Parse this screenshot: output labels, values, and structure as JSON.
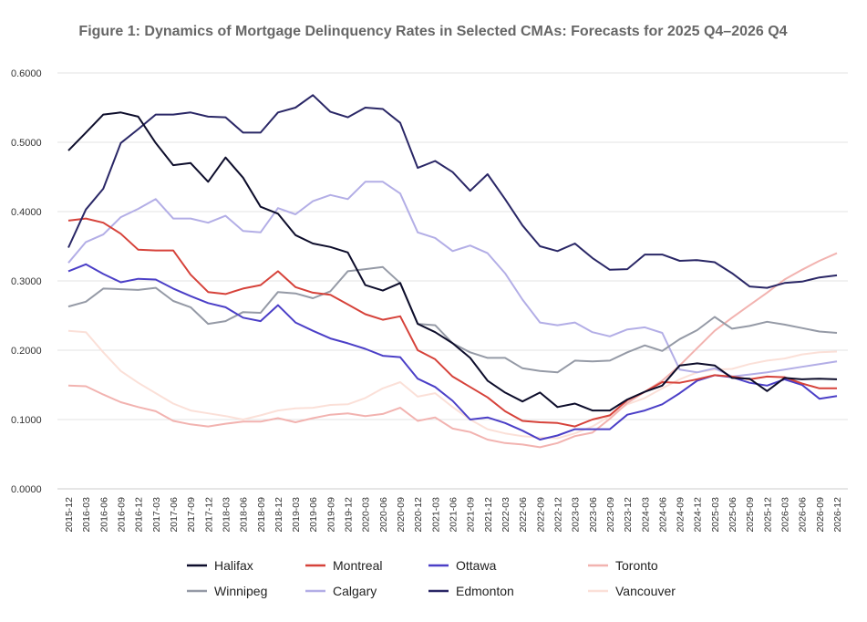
{
  "chart_data": {
    "type": "line",
    "title": "Figure 1: Dynamics of Mortgage Delinquency Rates in Selected CMAs: Forecasts for 2025 Q4–2026 Q4",
    "xlabel": "",
    "ylabel": "",
    "ylim": [
      0,
      0.6
    ],
    "yticks": [
      "0.0000",
      "0.1000",
      "0.2000",
      "0.3000",
      "0.4000",
      "0.5000",
      "0.6000"
    ],
    "grid": true,
    "legend_position": "bottom",
    "x": [
      "2015-12",
      "2016-03",
      "2016-06",
      "2016-09",
      "2016-12",
      "2017-03",
      "2017-06",
      "2017-09",
      "2017-12",
      "2018-03",
      "2018-06",
      "2018-09",
      "2018-12",
      "2019-03",
      "2019-06",
      "2019-09",
      "2019-12",
      "2020-03",
      "2020-06",
      "2020-09",
      "2020-12",
      "2021-03",
      "2021-06",
      "2021-09",
      "2021-12",
      "2022-03",
      "2022-06",
      "2022-09",
      "2022-12",
      "2023-03",
      "2023-06",
      "2023-09",
      "2023-12",
      "2024-03",
      "2024-06",
      "2024-09",
      "2024-12",
      "2025-03",
      "2025-06",
      "2025-09",
      "2025-12",
      "2026-03",
      "2026-06",
      "2026-09",
      "2026-12"
    ],
    "series": [
      {
        "name": "Halifax",
        "color": "#0d0d2b",
        "values": [
          0.488,
          0.514,
          0.54,
          0.543,
          0.537,
          0.499,
          0.467,
          0.47,
          0.443,
          0.478,
          0.449,
          0.407,
          0.397,
          0.366,
          0.354,
          0.349,
          0.341,
          0.294,
          0.286,
          0.297,
          0.238,
          0.226,
          0.21,
          0.189,
          0.156,
          0.139,
          0.126,
          0.139,
          0.118,
          0.123,
          0.113,
          0.113,
          0.129,
          0.14,
          0.149,
          0.178,
          0.181,
          0.178,
          0.16,
          0.159,
          0.141,
          0.16,
          0.158,
          0.159,
          0.158
        ]
      },
      {
        "name": "Montreal",
        "color": "#d6423a",
        "values": [
          0.387,
          0.39,
          0.384,
          0.368,
          0.345,
          0.344,
          0.344,
          0.309,
          0.284,
          0.281,
          0.289,
          0.294,
          0.314,
          0.291,
          0.283,
          0.28,
          0.266,
          0.252,
          0.244,
          0.249,
          0.2,
          0.187,
          0.162,
          0.147,
          0.132,
          0.112,
          0.098,
          0.096,
          0.095,
          0.09,
          0.1,
          0.106,
          0.128,
          0.14,
          0.154,
          0.153,
          0.158,
          0.164,
          0.162,
          0.158,
          0.162,
          0.161,
          0.152,
          0.145,
          0.145
        ]
      },
      {
        "name": "Ottawa",
        "color": "#4b3fc7",
        "values": [
          0.314,
          0.324,
          0.31,
          0.298,
          0.303,
          0.302,
          0.289,
          0.278,
          0.268,
          0.262,
          0.247,
          0.242,
          0.265,
          0.24,
          0.228,
          0.217,
          0.21,
          0.202,
          0.192,
          0.19,
          0.159,
          0.147,
          0.127,
          0.1,
          0.103,
          0.095,
          0.084,
          0.071,
          0.077,
          0.086,
          0.086,
          0.086,
          0.107,
          0.113,
          0.122,
          0.138,
          0.156,
          0.164,
          0.161,
          0.153,
          0.149,
          0.158,
          0.15,
          0.13,
          0.134
        ]
      },
      {
        "name": "Toronto",
        "color": "#f2b3b0",
        "values": [
          0.149,
          0.148,
          0.136,
          0.125,
          0.118,
          0.112,
          0.098,
          0.093,
          0.09,
          0.094,
          0.097,
          0.097,
          0.102,
          0.096,
          0.102,
          0.107,
          0.109,
          0.105,
          0.108,
          0.117,
          0.098,
          0.103,
          0.087,
          0.082,
          0.071,
          0.066,
          0.064,
          0.06,
          0.066,
          0.076,
          0.081,
          0.101,
          0.124,
          0.14,
          0.156,
          0.178,
          0.203,
          0.228,
          0.247,
          0.265,
          0.283,
          0.302,
          0.316,
          0.329,
          0.34
        ]
      },
      {
        "name": "Winnipeg",
        "color": "#959aa6",
        "values": [
          0.263,
          0.27,
          0.289,
          0.288,
          0.287,
          0.29,
          0.271,
          0.262,
          0.238,
          0.242,
          0.255,
          0.254,
          0.284,
          0.282,
          0.275,
          0.285,
          0.314,
          0.317,
          0.32,
          0.297,
          0.238,
          0.236,
          0.21,
          0.197,
          0.189,
          0.189,
          0.174,
          0.17,
          0.168,
          0.185,
          0.184,
          0.185,
          0.197,
          0.207,
          0.199,
          0.216,
          0.229,
          0.248,
          0.231,
          0.235,
          0.241,
          0.237,
          0.232,
          0.227,
          0.225
        ]
      },
      {
        "name": "Calgary",
        "color": "#b3aee6",
        "values": [
          0.326,
          0.356,
          0.367,
          0.392,
          0.404,
          0.418,
          0.39,
          0.39,
          0.384,
          0.394,
          0.372,
          0.37,
          0.405,
          0.396,
          0.415,
          0.424,
          0.418,
          0.443,
          0.443,
          0.426,
          0.37,
          0.362,
          0.343,
          0.351,
          0.34,
          0.311,
          0.273,
          0.24,
          0.236,
          0.24,
          0.226,
          0.22,
          0.23,
          0.233,
          0.225,
          0.172,
          0.168,
          0.174,
          0.162,
          0.165,
          0.168,
          0.172,
          0.176,
          0.18,
          0.184
        ]
      },
      {
        "name": "Edmonton",
        "color": "#2a2766",
        "values": [
          0.348,
          0.403,
          0.433,
          0.499,
          0.519,
          0.54,
          0.54,
          0.543,
          0.537,
          0.536,
          0.514,
          0.514,
          0.543,
          0.55,
          0.568,
          0.544,
          0.536,
          0.55,
          0.548,
          0.528,
          0.463,
          0.473,
          0.457,
          0.43,
          0.454,
          0.418,
          0.38,
          0.35,
          0.343,
          0.354,
          0.333,
          0.316,
          0.317,
          0.338,
          0.338,
          0.329,
          0.33,
          0.327,
          0.311,
          0.292,
          0.29,
          0.297,
          0.299,
          0.305,
          0.308
        ]
      },
      {
        "name": "Vancouver",
        "color": "#fbe0d8",
        "values": [
          0.228,
          0.226,
          0.197,
          0.17,
          0.153,
          0.138,
          0.123,
          0.113,
          0.109,
          0.105,
          0.1,
          0.106,
          0.113,
          0.116,
          0.117,
          0.121,
          0.122,
          0.131,
          0.145,
          0.154,
          0.133,
          0.138,
          0.118,
          0.1,
          0.086,
          0.08,
          0.076,
          0.074,
          0.073,
          0.08,
          0.09,
          0.105,
          0.122,
          0.131,
          0.145,
          0.158,
          0.168,
          0.172,
          0.173,
          0.18,
          0.185,
          0.188,
          0.194,
          0.197,
          0.198
        ]
      }
    ]
  }
}
